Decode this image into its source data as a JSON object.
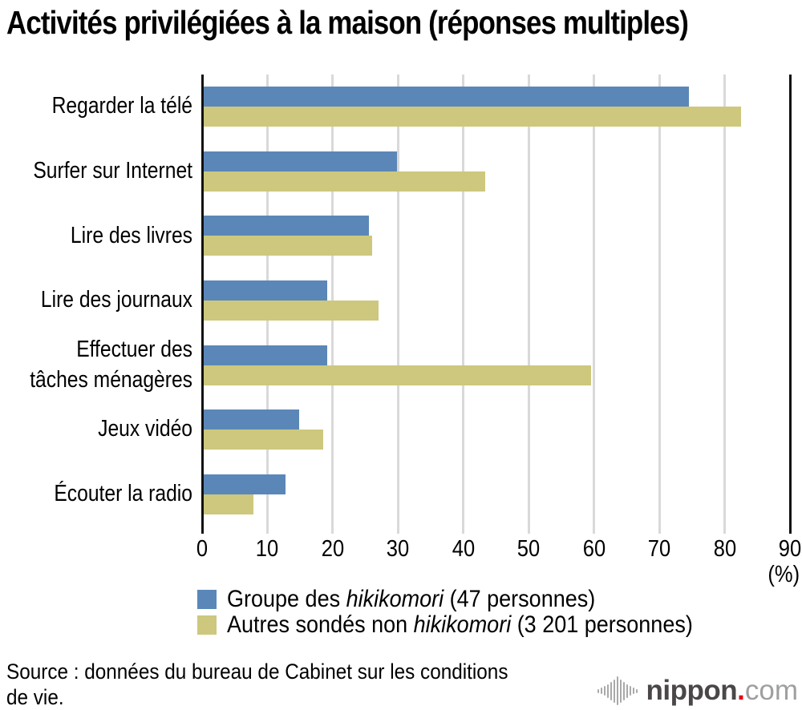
{
  "title": "Activités privilégiées à la maison (réponses multiples)",
  "chart_data": {
    "type": "bar",
    "orientation": "horizontal",
    "title": "Activités privilégiées à la maison (réponses multiples)",
    "categories": [
      "Regarder la télé",
      "Surfer sur Internet",
      "Lire des livres",
      "Lire des journaux",
      "Effectuer des tâches ménagères",
      "Jeux vidéo",
      "Écouter la radio"
    ],
    "category_display_lines": [
      [
        "Regarder la télé"
      ],
      [
        "Surfer sur Internet"
      ],
      [
        "Lire des livres"
      ],
      [
        "Lire des journaux"
      ],
      [
        "Effectuer des",
        "tâches ménagères"
      ],
      [
        "Jeux vidéo"
      ],
      [
        "Écouter la radio"
      ]
    ],
    "series": [
      {
        "name": "Groupe des hikikomori (47 personnes)",
        "color": "#5b87b8",
        "values": [
          74.5,
          29.8,
          25.5,
          19.1,
          19.1,
          14.9,
          12.8
        ]
      },
      {
        "name": "Autres sondés non hikikomori (3 201 personnes)",
        "color": "#cdc87d",
        "values": [
          82.5,
          43.4,
          26.0,
          27.0,
          59.5,
          18.6,
          7.9
        ]
      }
    ],
    "xlim": [
      0,
      90
    ],
    "x_ticks": [
      0,
      10,
      20,
      30,
      40,
      50,
      60,
      70,
      80,
      90
    ],
    "x_unit_label": "(%)",
    "grid": "vertical-gridlines",
    "legend_position": "bottom-left"
  },
  "legend": {
    "items": [
      {
        "prefix": "Groupe des ",
        "italic": "hikikomori",
        "suffix": " (47 personnes)",
        "color": "#5b87b8"
      },
      {
        "prefix": "Autres sondés non ",
        "italic": "hikikomori",
        "suffix": " (3 201 personnes)",
        "color": "#cdc87d"
      }
    ]
  },
  "source": {
    "line1": "Source : données du bureau de Cabinet sur les conditions",
    "line2": "de vie."
  },
  "logo": {
    "icon": "soundwave-icon",
    "name": "nippon",
    "dot": ".",
    "tld": "com"
  },
  "colors": {
    "series1": "#5b87b8",
    "series2": "#cdc87d",
    "gridline": "#d9d9d9",
    "axis": "#111111",
    "text": "#000000",
    "background": "#ffffff",
    "logo_dark": "#4b4748",
    "logo_light": "#9ea0a0",
    "logo_red": "#e60012"
  }
}
